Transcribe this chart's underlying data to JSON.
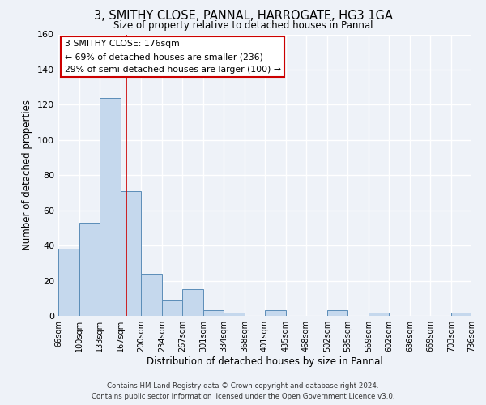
{
  "title_line1": "3, SMITHY CLOSE, PANNAL, HARROGATE, HG3 1GA",
  "title_line2": "Size of property relative to detached houses in Pannal",
  "xlabel": "Distribution of detached houses by size in Pannal",
  "ylabel": "Number of detached properties",
  "bar_color": "#c5d8ed",
  "bar_edge_color": "#5b8db8",
  "background_color": "#eef2f8",
  "grid_color": "#ffffff",
  "bin_edges": [
    66,
    100,
    133,
    167,
    200,
    234,
    267,
    301,
    334,
    368,
    401,
    435,
    468,
    502,
    535,
    569,
    602,
    636,
    669,
    703,
    736
  ],
  "bin_labels": [
    "66sqm",
    "100sqm",
    "133sqm",
    "167sqm",
    "200sqm",
    "234sqm",
    "267sqm",
    "301sqm",
    "334sqm",
    "368sqm",
    "401sqm",
    "435sqm",
    "468sqm",
    "502sqm",
    "535sqm",
    "569sqm",
    "602sqm",
    "636sqm",
    "669sqm",
    "703sqm",
    "736sqm"
  ],
  "bar_heights": [
    38,
    53,
    124,
    71,
    24,
    9,
    15,
    3,
    2,
    0,
    3,
    0,
    0,
    3,
    0,
    2,
    0,
    0,
    0,
    2
  ],
  "red_line_x": 176,
  "ylim": [
    0,
    160
  ],
  "yticks": [
    0,
    20,
    40,
    60,
    80,
    100,
    120,
    140,
    160
  ],
  "annotation_title": "3 SMITHY CLOSE: 176sqm",
  "annotation_line1": "← 69% of detached houses are smaller (236)",
  "annotation_line2": "29% of semi-detached houses are larger (100) →",
  "annotation_box_color": "#ffffff",
  "annotation_box_edge_color": "#cc0000",
  "footer_line1": "Contains HM Land Registry data © Crown copyright and database right 2024.",
  "footer_line2": "Contains public sector information licensed under the Open Government Licence v3.0."
}
